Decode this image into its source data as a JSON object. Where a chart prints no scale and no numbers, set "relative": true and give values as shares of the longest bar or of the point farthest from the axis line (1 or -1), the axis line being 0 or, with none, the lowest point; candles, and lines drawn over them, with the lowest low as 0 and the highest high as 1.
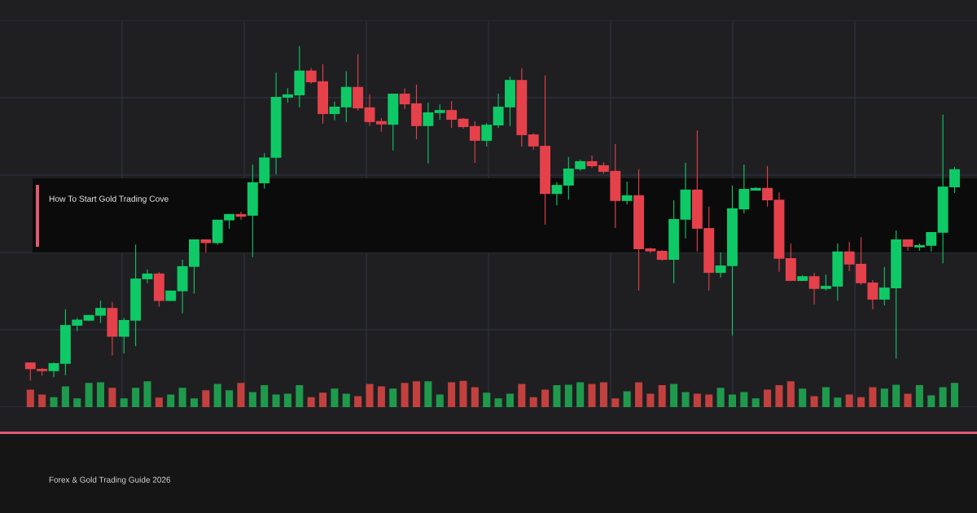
{
  "chart_data": [
    {
      "type": "candlestick",
      "title": "How To Start Gold Trading Cove",
      "annotations": [
        "Forex & Gold Trading Guide 2026"
      ],
      "relative": true,
      "grid": true,
      "categories": [
        null,
        null,
        null,
        null,
        null,
        null,
        null,
        null,
        null,
        null,
        null,
        null,
        null,
        null,
        null,
        null,
        null,
        null,
        null,
        null,
        null,
        null,
        null,
        null,
        null,
        null,
        null,
        null,
        null,
        null,
        null,
        null,
        null,
        null,
        null,
        null,
        null,
        null,
        null,
        null,
        null,
        null,
        null,
        null,
        null,
        null,
        null,
        null,
        null,
        null,
        null,
        null,
        null,
        null,
        null,
        null,
        null,
        null,
        null,
        null,
        null,
        null,
        null,
        null,
        null,
        null,
        null,
        null,
        null,
        null,
        null,
        null,
        null,
        null,
        null,
        null,
        null,
        null,
        null,
        null
      ],
      "ohlc": [
        [
          0.054,
          0.054,
          0,
          0.034
        ],
        [
          0.035,
          0.038,
          0.014,
          0.028
        ],
        [
          0.028,
          0.054,
          0.01,
          0.052
        ],
        [
          0.05,
          0.213,
          0.016,
          0.166
        ],
        [
          0.164,
          0.187,
          0.148,
          0.182
        ],
        [
          0.179,
          0.196,
          0.178,
          0.196
        ],
        [
          0.194,
          0.239,
          0.172,
          0.217
        ],
        [
          0.217,
          0.235,
          0.075,
          0.131
        ],
        [
          0.131,
          0.187,
          0.081,
          0.181
        ],
        [
          0.179,
          0.407,
          0.103,
          0.305
        ],
        [
          0.303,
          0.332,
          0.291,
          0.32
        ],
        [
          0.32,
          0.324,
          0.221,
          0.238
        ],
        [
          0.238,
          0.269,
          0.238,
          0.269
        ],
        [
          0.267,
          0.361,
          0.201,
          0.342
        ],
        [
          0.34,
          0.422,
          0.26,
          0.422
        ],
        [
          0.422,
          0.422,
          0.383,
          0.411
        ],
        [
          0.411,
          0.481,
          0.406,
          0.481
        ],
        [
          0.479,
          0.498,
          0.454,
          0.498
        ],
        [
          0.498,
          0.505,
          0.481,
          0.49
        ],
        [
          0.493,
          0.646,
          0.369,
          0.593
        ],
        [
          0.59,
          0.68,
          0.574,
          0.667
        ],
        [
          0.666,
          0.921,
          0.617,
          0.848
        ],
        [
          0.846,
          0.874,
          0.831,
          0.856
        ],
        [
          0.853,
          1,
          0.817,
          0.927
        ],
        [
          0.927,
          0.935,
          0.888,
          0.892
        ],
        [
          0.895,
          0.946,
          0.768,
          0.797
        ],
        [
          0.797,
          0.834,
          0.778,
          0.819
        ],
        [
          0.817,
          0.925,
          0.773,
          0.878
        ],
        [
          0.878,
          0.976,
          0.807,
          0.814
        ],
        [
          0.817,
          0.856,
          0.761,
          0.773
        ],
        [
          0.776,
          0.785,
          0.744,
          0.766
        ],
        [
          0.765,
          0.858,
          0.688,
          0.858
        ],
        [
          0.858,
          0.874,
          0.812,
          0.826
        ],
        [
          0.829,
          0.885,
          0.722,
          0.761
        ],
        [
          0.761,
          0.831,
          0.649,
          0.802
        ],
        [
          0.8,
          0.826,
          0.78,
          0.809
        ],
        [
          0.809,
          0.836,
          0.756,
          0.78
        ],
        [
          0.783,
          0.785,
          0.753,
          0.758
        ],
        [
          0.761,
          0.775,
          0.651,
          0.717
        ],
        [
          0.717,
          0.77,
          0.7,
          0.765
        ],
        [
          0.763,
          0.858,
          0.756,
          0.819
        ],
        [
          0.817,
          0.909,
          0.761,
          0.899
        ],
        [
          0.899,
          0.934,
          0.7,
          0.734
        ],
        [
          0.736,
          0.74,
          0.69,
          0.7
        ],
        [
          0.702,
          0.912,
          0.466,
          0.558
        ],
        [
          0.558,
          0.593,
          0.524,
          0.585
        ],
        [
          0.583,
          0.668,
          0.541,
          0.634
        ],
        [
          0.632,
          0.661,
          0.627,
          0.656
        ],
        [
          0.656,
          0.673,
          0.636,
          0.641
        ],
        [
          0.644,
          0.653,
          0.619,
          0.624
        ],
        [
          0.627,
          0.707,
          0.456,
          0.537
        ],
        [
          0.537,
          0.595,
          0.527,
          0.554
        ],
        [
          0.554,
          0.632,
          0.269,
          0.393
        ],
        [
          0.395,
          0.398,
          0.381,
          0.386
        ],
        [
          0.388,
          0.39,
          0.359,
          0.361
        ],
        [
          0.361,
          0.539,
          0.291,
          0.483
        ],
        [
          0.481,
          0.651,
          0.425,
          0.571
        ],
        [
          0.571,
          0.748,
          0.386,
          0.454
        ],
        [
          0.456,
          0.52,
          0.269,
          0.322
        ],
        [
          0.322,
          0.383,
          0.308,
          0.344
        ],
        [
          0.342,
          0.583,
          0.135,
          0.515
        ],
        [
          0.512,
          0.646,
          0.5,
          0.573
        ],
        [
          0.568,
          0.578,
          0.568,
          0.576
        ],
        [
          0.576,
          0.641,
          0.52,
          0.539
        ],
        [
          0.541,
          0.563,
          0.325,
          0.364
        ],
        [
          0.366,
          0.41,
          0.298,
          0.298
        ],
        [
          0.298,
          0.315,
          0.298,
          0.312
        ],
        [
          0.312,
          0.322,
          0.227,
          0.274
        ],
        [
          0.274,
          0.317,
          0.269,
          0.283
        ],
        [
          0.281,
          0.41,
          0.239,
          0.386
        ],
        [
          0.386,
          0.415,
          0.327,
          0.347
        ],
        [
          0.349,
          0.429,
          0.286,
          0.291
        ],
        [
          0.293,
          0.3,
          0.213,
          0.242
        ],
        [
          0.242,
          0.339,
          0.225,
          0.278
        ],
        [
          0.276,
          0.449,
          0.066,
          0.422
        ],
        [
          0.422,
          0.422,
          0.388,
          0.4
        ],
        [
          0.398,
          0.41,
          0.388,
          0.405
        ],
        [
          0.403,
          0.444,
          0.386,
          0.444
        ],
        [
          0.442,
          0.795,
          0.351,
          0.58
        ],
        [
          0.578,
          0.639,
          0.561,
          0.632
        ]
      ],
      "colors": [
        "#e5414b",
        "#e5414b",
        "#0fc966",
        "#0fc966",
        "#0fc966",
        "#0fc966",
        "#0fc966",
        "#e5414b",
        "#0fc966",
        "#0fc966",
        "#0fc966",
        "#e5414b",
        "#0fc966",
        "#0fc966",
        "#0fc966",
        "#e5414b",
        "#0fc966",
        "#0fc966",
        "#e5414b",
        "#0fc966",
        "#0fc966",
        "#0fc966",
        "#0fc966",
        "#0fc966",
        "#e5414b",
        "#e5414b",
        "#0fc966",
        "#0fc966",
        "#e5414b",
        "#e5414b",
        "#e5414b",
        "#0fc966",
        "#e5414b",
        "#e5414b",
        "#0fc966",
        "#0fc966",
        "#e5414b",
        "#e5414b",
        "#e5414b",
        "#0fc966",
        "#0fc966",
        "#0fc966",
        "#e5414b",
        "#e5414b",
        "#e5414b",
        "#0fc966",
        "#0fc966",
        "#0fc966",
        "#e5414b",
        "#e5414b",
        "#e5414b",
        "#0fc966",
        "#e5414b",
        "#e5414b",
        "#e5414b",
        "#0fc966",
        "#0fc966",
        "#e5414b",
        "#e5414b",
        "#0fc966",
        "#0fc966",
        "#0fc966",
        "#0fc966",
        "#e5414b",
        "#e5414b",
        "#e5414b",
        "#0fc966",
        "#e5414b",
        "#0fc966",
        "#0fc966",
        "#e5414b",
        "#e5414b",
        "#e5414b",
        "#0fc966",
        "#0fc966",
        "#e5414b",
        "#0fc966",
        "#0fc966",
        "#0fc966",
        "#0fc966"
      ]
    },
    {
      "type": "bar",
      "relative": true,
      "categories": [
        null,
        null,
        null,
        null,
        null,
        null,
        null,
        null,
        null,
        null,
        null,
        null,
        null,
        null,
        null,
        null,
        null,
        null,
        null,
        null,
        null,
        null,
        null,
        null,
        null,
        null,
        null,
        null,
        null,
        null,
        null,
        null,
        null,
        null,
        null,
        null,
        null,
        null,
        null,
        null,
        null,
        null,
        null,
        null,
        null,
        null,
        null,
        null,
        null,
        null,
        null,
        null,
        null,
        null,
        null,
        null,
        null,
        null,
        null,
        null,
        null,
        null,
        null,
        null,
        null,
        null,
        null,
        null,
        null,
        null,
        null,
        null,
        null,
        null,
        null,
        null,
        null,
        null,
        null,
        null
      ],
      "values": [
        0.66,
        0.48,
        0.38,
        0.79,
        0.33,
        0.92,
        0.94,
        0.73,
        0.33,
        0.73,
        0.98,
        0.36,
        0.48,
        0.73,
        0.33,
        0.64,
        0.88,
        0.64,
        0.92,
        0.57,
        0.83,
        0.48,
        0.51,
        0.83,
        0.38,
        0.55,
        0.7,
        0.51,
        0.42,
        0.88,
        0.79,
        0.7,
        0.92,
        0.98,
        0.98,
        0.48,
        0.94,
        1,
        0.76,
        0.55,
        0.33,
        0.51,
        0.88,
        0.38,
        0.66,
        0.83,
        0.85,
        0.94,
        0.88,
        0.94,
        0.33,
        0.6,
        0.94,
        0.51,
        0.83,
        0.88,
        0.57,
        0.51,
        0.48,
        0.73,
        0.48,
        0.57,
        0.33,
        0.66,
        0.83,
        0.98,
        0.7,
        0.42,
        0.76,
        0.36,
        0.48,
        0.38,
        0.76,
        0.7,
        0.85,
        0.51,
        0.83,
        0.45,
        0.76,
        0.92
      ],
      "colors": [
        "#c2413f",
        "#c2413f",
        "#1f9a4d",
        "#1f9a4d",
        "#1f9a4d",
        "#1f9a4d",
        "#1f9a4d",
        "#c2413f",
        "#1f9a4d",
        "#1f9a4d",
        "#1f9a4d",
        "#c2413f",
        "#1f9a4d",
        "#1f9a4d",
        "#1f9a4d",
        "#c2413f",
        "#1f9a4d",
        "#1f9a4d",
        "#c2413f",
        "#1f9a4d",
        "#1f9a4d",
        "#1f9a4d",
        "#1f9a4d",
        "#1f9a4d",
        "#c2413f",
        "#c2413f",
        "#1f9a4d",
        "#1f9a4d",
        "#c2413f",
        "#c2413f",
        "#c2413f",
        "#1f9a4d",
        "#c2413f",
        "#c2413f",
        "#1f9a4d",
        "#1f9a4d",
        "#c2413f",
        "#c2413f",
        "#c2413f",
        "#1f9a4d",
        "#1f9a4d",
        "#1f9a4d",
        "#c2413f",
        "#c2413f",
        "#c2413f",
        "#1f9a4d",
        "#1f9a4d",
        "#1f9a4d",
        "#c2413f",
        "#c2413f",
        "#c2413f",
        "#1f9a4d",
        "#c2413f",
        "#c2413f",
        "#c2413f",
        "#1f9a4d",
        "#1f9a4d",
        "#c2413f",
        "#c2413f",
        "#1f9a4d",
        "#1f9a4d",
        "#1f9a4d",
        "#1f9a4d",
        "#c2413f",
        "#c2413f",
        "#c2413f",
        "#1f9a4d",
        "#c2413f",
        "#1f9a4d",
        "#1f9a4d",
        "#c2413f",
        "#c2413f",
        "#c2413f",
        "#1f9a4d",
        "#1f9a4d",
        "#c2413f",
        "#1f9a4d",
        "#1f9a4d",
        "#1f9a4d",
        "#1f9a4d"
      ]
    }
  ]
}
